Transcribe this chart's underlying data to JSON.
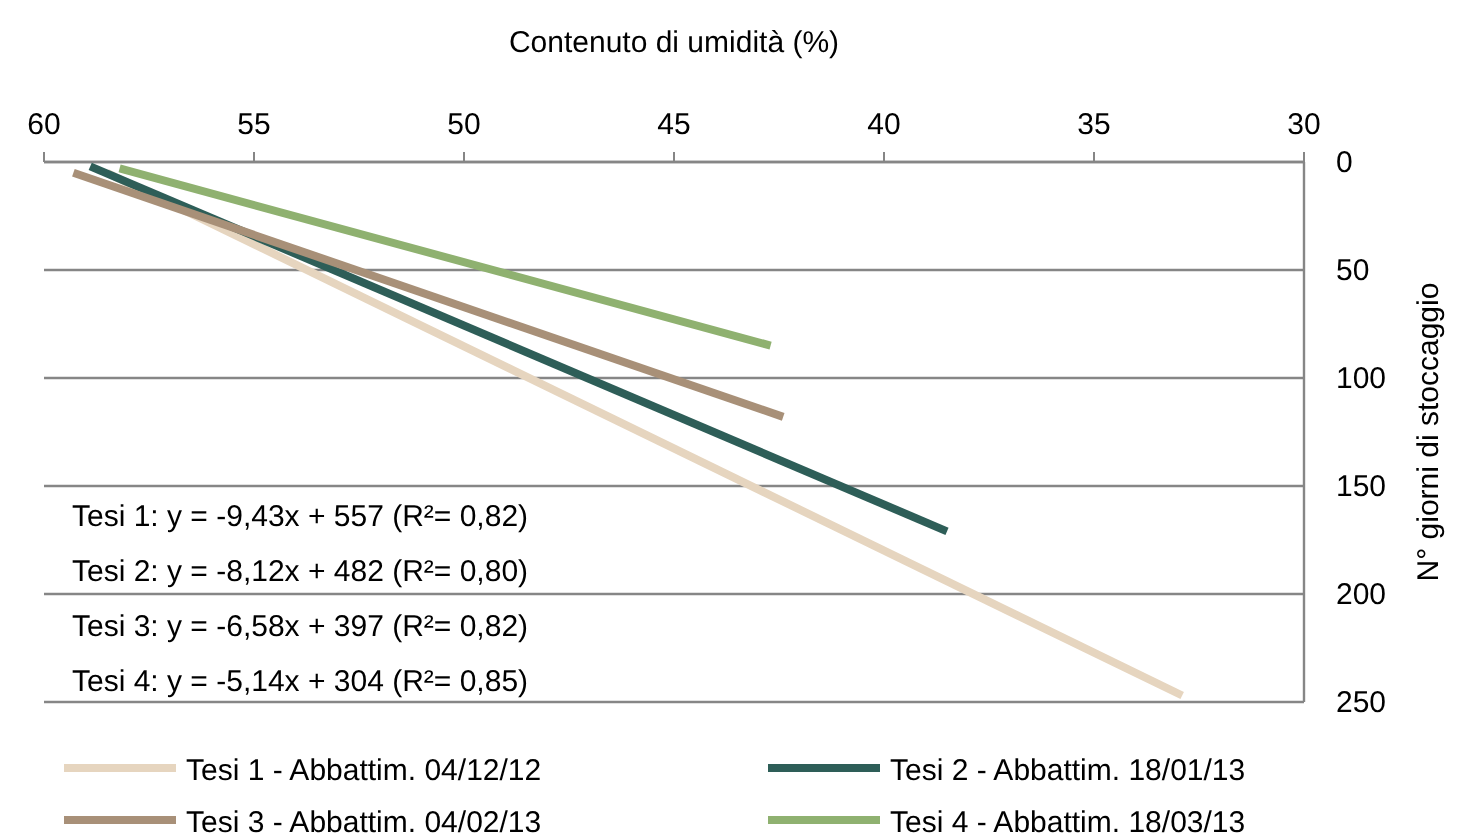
{
  "chart_data": {
    "type": "line",
    "xlabel": "Contenuto di umidità (%)",
    "ylabel": "N° giorni di stoccaggio",
    "xlim": [
      60,
      30
    ],
    "xticks": [
      60,
      55,
      50,
      45,
      40,
      35,
      30
    ],
    "ylim": [
      250,
      0
    ],
    "yticks": [
      0,
      50,
      100,
      150,
      200,
      250
    ],
    "grid": "y",
    "legend": "bottom",
    "marker": "none",
    "line_style": "solid",
    "series": [
      {
        "name": "Tesi 1 - Abbattim. 04/12/12",
        "color": "#e6d5bf",
        "x": [
          58.5,
          32.9
        ],
        "values": [
          5,
          247
        ]
      },
      {
        "name": "Tesi 2 - Abbattim. 18/01/13",
        "color": "#2e5e58",
        "x": [
          58.9,
          38.5
        ],
        "values": [
          2,
          171
        ]
      },
      {
        "name": "Tesi 3 - Abbattim. 04/02/13",
        "color": "#a89078",
        "x": [
          59.3,
          42.4
        ],
        "values": [
          5,
          118
        ]
      },
      {
        "name": "Tesi 4 - Abbattim. 18/03/13",
        "color": "#8fb170",
        "x": [
          58.2,
          42.7
        ],
        "values": [
          3,
          85
        ]
      }
    ],
    "annotations": [
      "Tesi 1: y = -9,43x + 557 (R²= 0,82)",
      "Tesi 2: y = -8,12x + 482 (R²= 0,80)",
      "Tesi 3: y = -6,58x + 397 (R²= 0,82)",
      "Tesi 4: y = -5,14x + 304 (R²= 0,85)"
    ]
  }
}
